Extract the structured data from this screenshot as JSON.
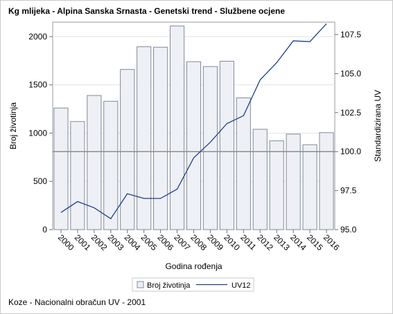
{
  "title": "Kg mlijeka - Alpina Sanska Srnasta - Genetski trend - Službene ocjene",
  "footnote": "Koze - Nacionalni obračun UV - 2001",
  "chart_data": {
    "type": "bar",
    "categories": [
      "2000",
      "2001",
      "2002",
      "2003",
      "2004",
      "2005",
      "2006",
      "2007",
      "2008",
      "2009",
      "2010",
      "2011",
      "2012",
      "2013",
      "2014",
      "2015",
      "2016"
    ],
    "xlabel": "Godina rođenja",
    "ylabel": "Broj životinja",
    "y2label": "Standardizirana UV",
    "ylim": [
      0,
      2150
    ],
    "y2lim": [
      95.0,
      108.3
    ],
    "yticks": [
      0,
      500,
      1000,
      1500,
      2000
    ],
    "y2ticks": [
      95.0,
      97.5,
      100.0,
      102.5,
      105.0,
      107.5
    ],
    "ytick_labels": [
      "0",
      "500",
      "1000",
      "1500",
      "2000"
    ],
    "y2tick_labels": [
      "95.0",
      "97.5",
      "100.0",
      "102.5",
      "105.0",
      "107.5"
    ],
    "reference_line_y2": 100.0,
    "grid": true,
    "legend_position": "bottom",
    "series": [
      {
        "name": "Broj životinja",
        "type": "bar",
        "axis": "left",
        "values": [
          1260,
          1120,
          1390,
          1330,
          1660,
          1895,
          1890,
          2110,
          1740,
          1690,
          1745,
          1365,
          1040,
          920,
          990,
          880,
          1005
        ],
        "color": "#eef0f5",
        "stroke": "#808a9a"
      },
      {
        "name": "UV12",
        "type": "line",
        "axis": "right",
        "values": [
          96.1,
          96.8,
          96.4,
          95.7,
          97.3,
          97.0,
          97.0,
          97.6,
          99.6,
          100.6,
          101.8,
          102.3,
          104.6,
          105.7,
          107.1,
          107.05,
          108.2
        ],
        "color": "#1f3d8c"
      }
    ]
  }
}
